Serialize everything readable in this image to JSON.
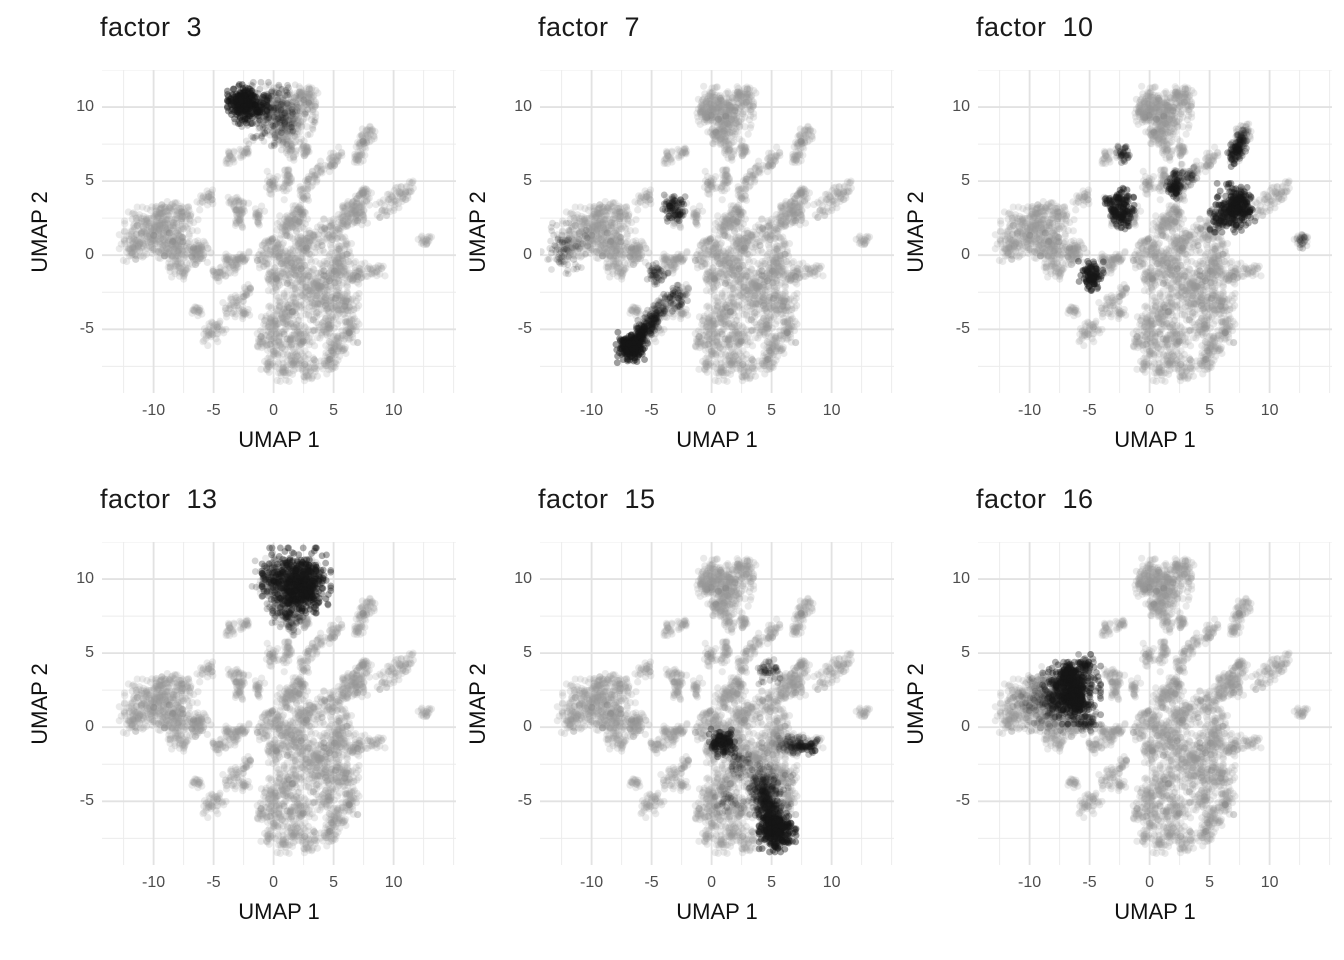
{
  "figure": {
    "kind": "faceted UMAP scatter, 2 rows x 3 columns",
    "background": "#ffffff"
  },
  "chart_data": {
    "type": "scatter",
    "xlabel": "UMAP 1",
    "ylabel": "UMAP 2",
    "xticks": [
      -10,
      -5,
      0,
      5,
      10
    ],
    "yticks": [
      10,
      5,
      0,
      -5
    ],
    "xlim": [
      -14.3,
      15.2
    ],
    "ylim": [
      -9.3,
      12.5
    ],
    "grid": {
      "x_major": [
        -10,
        -5,
        0,
        5,
        10
      ],
      "x_minor": [
        -12.5,
        -7.5,
        -2.5,
        2.5,
        7.5,
        12.5,
        15
      ],
      "y_major": [
        -5,
        0,
        5,
        10
      ],
      "y_minor": [
        -7.5,
        -2.5,
        2.5,
        7.5,
        12.5
      ],
      "major_color": "#e2e2e2",
      "minor_color": "#ececec"
    },
    "point_color": "#969696",
    "speckle_color": "#6e6e6e",
    "highlight_color": "#191919",
    "base_clusters": [
      [
        "b",
        1.3,
        9.6,
        2.0,
        1.3,
        240
      ],
      [
        "b",
        0.0,
        10.3,
        1.0,
        1.0,
        80
      ],
      [
        "b",
        2.7,
        10.7,
        0.9,
        0.8,
        60
      ],
      [
        "b",
        -0.5,
        9.6,
        0.7,
        0.7,
        40
      ],
      [
        "b",
        1.1,
        8.3,
        0.9,
        0.8,
        60
      ],
      [
        "s",
        1.2,
        7.7,
        1.6,
        6.6,
        0.45,
        36
      ],
      [
        "s",
        2.4,
        7.4,
        2.7,
        6.8,
        0.4,
        26
      ],
      [
        "b",
        0.3,
        7.9,
        0.4,
        0.4,
        16
      ],
      [
        "b",
        -3.6,
        6.6,
        0.42,
        0.38,
        20
      ],
      [
        "b",
        -2.4,
        6.9,
        0.42,
        0.38,
        20
      ],
      [
        "s",
        7.3,
        7.3,
        8.3,
        8.6,
        0.5,
        50
      ],
      [
        "s",
        6.8,
        6.4,
        7.3,
        7.0,
        0.45,
        28
      ],
      [
        "s",
        4.5,
        5.9,
        5.4,
        6.8,
        0.45,
        36
      ],
      [
        "s",
        3.0,
        4.9,
        3.8,
        5.9,
        0.45,
        36
      ],
      [
        "s",
        8.8,
        2.9,
        11.4,
        4.6,
        0.52,
        75
      ],
      [
        "s",
        12.3,
        0.8,
        13.0,
        1.2,
        0.4,
        22
      ],
      [
        "b",
        6.8,
        3.1,
        1.25,
        0.95,
        110
      ],
      [
        "b",
        5.9,
        2.2,
        0.6,
        0.55,
        32
      ],
      [
        "b",
        7.7,
        4.2,
        0.55,
        0.5,
        28
      ],
      [
        "b",
        -10.0,
        1.6,
        2.2,
        1.5,
        260
      ],
      [
        "b",
        -8.2,
        0.5,
        1.6,
        1.2,
        130
      ],
      [
        "b",
        -11.7,
        0.6,
        1.05,
        0.95,
        65
      ],
      [
        "b",
        -7.4,
        2.6,
        1.0,
        0.9,
        65
      ],
      [
        "b",
        -9.1,
        2.9,
        0.95,
        0.8,
        55
      ],
      [
        "b",
        -6.4,
        0.2,
        0.8,
        0.75,
        45
      ],
      [
        "b",
        -7.8,
        -0.9,
        0.75,
        0.7,
        38
      ],
      [
        "s",
        -6.6,
        -0.2,
        -5.5,
        0.5,
        0.5,
        32
      ],
      [
        "s",
        -6.1,
        3.3,
        -5.2,
        4.3,
        0.45,
        28
      ],
      [
        "s",
        -3.4,
        3.7,
        -2.9,
        2.9,
        0.42,
        26
      ],
      [
        "s",
        -2.4,
        3.7,
        -2.9,
        2.9,
        0.38,
        22
      ],
      [
        "b",
        -2.9,
        2.3,
        0.45,
        0.42,
        20
      ],
      [
        "s",
        -1.4,
        2.2,
        -1.1,
        3.1,
        0.4,
        24
      ],
      [
        "s",
        -0.4,
        4.3,
        0.0,
        5.2,
        0.42,
        28
      ],
      [
        "s",
        0.9,
        4.3,
        1.3,
        5.7,
        0.48,
        38
      ],
      [
        "b",
        2.6,
        4.2,
        0.5,
        0.45,
        22
      ],
      [
        "b",
        -4.6,
        -1.3,
        0.55,
        0.5,
        28
      ],
      [
        "b",
        -3.3,
        -0.6,
        0.6,
        0.55,
        32
      ],
      [
        "b",
        -2.6,
        -0.1,
        0.5,
        0.45,
        22
      ],
      [
        "b",
        -3.9,
        -0.3,
        0.4,
        0.38,
        16
      ],
      [
        "b",
        -2.1,
        -2.4,
        0.4,
        0.38,
        16
      ],
      [
        "s",
        -3.8,
        -3.9,
        -2.7,
        -2.8,
        0.48,
        40
      ],
      [
        "b",
        -6.4,
        -3.7,
        0.45,
        0.42,
        20
      ],
      [
        "s",
        -5.6,
        -5.6,
        -4.3,
        -4.6,
        0.55,
        45
      ],
      [
        "b",
        -2.4,
        -4.0,
        0.4,
        0.38,
        16
      ],
      [
        "b",
        3.5,
        -2.4,
        2.4,
        1.8,
        280
      ],
      [
        "b",
        1.5,
        -0.8,
        1.3,
        1.1,
        110
      ],
      [
        "b",
        2.8,
        0.8,
        1.3,
        1.0,
        100
      ],
      [
        "b",
        1.2,
        1.9,
        0.9,
        0.8,
        55
      ],
      [
        "b",
        0.3,
        0.3,
        0.8,
        0.75,
        45
      ],
      [
        "b",
        -0.4,
        0.9,
        0.5,
        0.45,
        22
      ],
      [
        "b",
        5.5,
        -0.9,
        1.2,
        0.9,
        85
      ],
      [
        "b",
        6.9,
        -1.3,
        0.8,
        0.7,
        42
      ],
      [
        "s",
        7.9,
        -1.2,
        9.0,
        -1.0,
        0.45,
        28
      ],
      [
        "b",
        5.8,
        -3.5,
        1.2,
        1.0,
        85
      ],
      [
        "b",
        6.3,
        -5.0,
        0.9,
        0.85,
        55
      ],
      [
        "b",
        5.2,
        -6.2,
        0.9,
        0.85,
        55
      ],
      [
        "b",
        4.6,
        -7.3,
        0.7,
        0.65,
        36
      ],
      [
        "b",
        3.0,
        -7.7,
        0.8,
        0.7,
        42
      ],
      [
        "b",
        1.8,
        -7.0,
        0.8,
        0.75,
        42
      ],
      [
        "b",
        0.8,
        -7.8,
        0.7,
        0.65,
        32
      ],
      [
        "b",
        0.4,
        -6.1,
        0.9,
        0.85,
        50
      ],
      [
        "b",
        -0.2,
        -4.9,
        0.8,
        0.75,
        42
      ],
      [
        "b",
        0.9,
        -4.0,
        1.5,
        1.2,
        110
      ],
      [
        "b",
        -0.9,
        -5.9,
        0.6,
        0.55,
        26
      ],
      [
        "b",
        -0.5,
        -7.4,
        0.5,
        0.48,
        20
      ],
      [
        "b",
        2.2,
        -5.6,
        1.2,
        1.0,
        75
      ],
      [
        "b",
        4.4,
        -4.7,
        1.0,
        0.95,
        60
      ],
      [
        "b",
        2.0,
        2.4,
        0.8,
        0.75,
        42
      ],
      [
        "s",
        2.0,
        3.3,
        2.2,
        2.5,
        0.45,
        22
      ],
      [
        "b",
        0.0,
        -1.5,
        0.9,
        0.85,
        50
      ],
      [
        "b",
        -0.9,
        -0.3,
        0.6,
        0.55,
        26
      ],
      [
        "b",
        4.8,
        1.5,
        0.9,
        0.85,
        55
      ],
      [
        "b",
        5.7,
        0.4,
        0.8,
        0.75,
        42
      ]
    ],
    "panels": [
      {
        "title": "factor  3",
        "highlights": [
          [
            "b",
            -2.2,
            10.2,
            1.5,
            1.2,
            220,
            1.0
          ],
          [
            "b",
            -2.5,
            10.3,
            0.7,
            0.6,
            90,
            1.0
          ],
          [
            "b",
            -0.8,
            9.8,
            2.2,
            1.7,
            150,
            0.5
          ],
          [
            "b",
            0.6,
            9.3,
            2.6,
            2.0,
            110,
            0.25
          ]
        ]
      },
      {
        "title": "factor  7",
        "highlights": [
          [
            "s",
            -6.9,
            -6.4,
            -4.0,
            -3.4,
            0.55,
            290,
            0.95,
            0
          ],
          [
            "b",
            -6.8,
            -6.3,
            1.1,
            1.0,
            150,
            1.0
          ],
          [
            "b",
            -3.2,
            3.2,
            0.9,
            0.9,
            65,
            0.7
          ],
          [
            "b",
            -12.3,
            0.4,
            1.8,
            1.6,
            85,
            0.32
          ],
          [
            "b",
            -4.5,
            -1.2,
            0.8,
            0.8,
            38,
            0.45
          ],
          [
            "b",
            -3.0,
            -2.9,
            0.9,
            0.8,
            45,
            0.55
          ]
        ]
      },
      {
        "title": "factor  10",
        "highlights": [
          [
            "s",
            7.1,
            6.6,
            7.9,
            8.5,
            0.55,
            120,
            0.85,
            0
          ],
          [
            "b",
            6.9,
            3.2,
            1.7,
            1.5,
            170,
            0.9
          ],
          [
            "b",
            7.6,
            3.4,
            0.9,
            0.8,
            65,
            1.0
          ],
          [
            "b",
            6.2,
            2.6,
            0.9,
            0.8,
            45,
            0.6
          ],
          [
            "s",
            1.9,
            4.2,
            2.3,
            5.6,
            0.5,
            100,
            0.95,
            0
          ],
          [
            "b",
            -2.5,
            3.4,
            1.1,
            1.1,
            100,
            0.95
          ],
          [
            "b",
            -2.2,
            2.5,
            0.8,
            0.7,
            45,
            0.85
          ],
          [
            "b",
            -4.9,
            -1.4,
            0.95,
            0.9,
            90,
            0.95
          ],
          [
            "b",
            -2.1,
            6.8,
            0.6,
            0.6,
            28,
            0.6
          ],
          [
            "s",
            12.4,
            0.9,
            13.0,
            1.2,
            0.4,
            22,
            0.5,
            0
          ],
          [
            "b",
            3.3,
            5.3,
            0.6,
            0.6,
            22,
            0.45
          ]
        ]
      },
      {
        "title": "factor  13",
        "highlights": [
          [
            "b",
            1.9,
            9.9,
            2.6,
            2.0,
            330,
            0.85
          ],
          [
            "b",
            2.6,
            9.4,
            1.6,
            1.4,
            170,
            1.0
          ],
          [
            "b",
            0.4,
            10.0,
            2.0,
            1.6,
            110,
            0.45
          ],
          [
            "b",
            1.1,
            8.2,
            1.5,
            1.3,
            85,
            0.5
          ],
          [
            "b",
            1.5,
            7.2,
            0.8,
            0.9,
            36,
            0.35
          ]
        ]
      },
      {
        "title": "factor  15",
        "highlights": [
          [
            "b",
            0.9,
            -1.0,
            1.0,
            0.9,
            100,
            0.9
          ],
          [
            "s",
            5.6,
            -1.2,
            8.6,
            -1.3,
            0.5,
            115,
            0.8,
            1
          ],
          [
            "s",
            4.0,
            -3.4,
            5.4,
            -7.3,
            0.9,
            360,
            1.0,
            1
          ],
          [
            "b",
            5.5,
            -7.1,
            1.4,
            1.2,
            190,
            1.0
          ],
          [
            "b",
            4.7,
            -4.4,
            1.9,
            1.7,
            100,
            0.4
          ],
          [
            "b",
            4.7,
            3.7,
            0.9,
            0.85,
            50,
            0.45
          ],
          [
            "b",
            2.4,
            -2.6,
            1.3,
            1.1,
            55,
            0.3
          ],
          [
            "b",
            1.5,
            -5.0,
            1.1,
            0.9,
            36,
            0.3
          ]
        ]
      },
      {
        "title": "factor  16",
        "highlights": [
          [
            "b",
            -6.5,
            2.3,
            2.2,
            1.9,
            320,
            0.85
          ],
          [
            "b",
            -6.7,
            3.4,
            1.0,
            0.85,
            110,
            1.0
          ],
          [
            "b",
            -6.2,
            1.8,
            1.0,
            0.9,
            120,
            1.0
          ],
          [
            "b",
            -7.9,
            1.6,
            2.2,
            1.8,
            130,
            0.4
          ],
          [
            "b",
            -5.4,
            4.2,
            0.7,
            0.65,
            36,
            0.7
          ],
          [
            "b",
            -5.0,
            0.3,
            0.9,
            0.85,
            45,
            0.4
          ],
          [
            "b",
            -9.2,
            1.9,
            2.4,
            2.0,
            80,
            0.22
          ]
        ]
      }
    ]
  }
}
